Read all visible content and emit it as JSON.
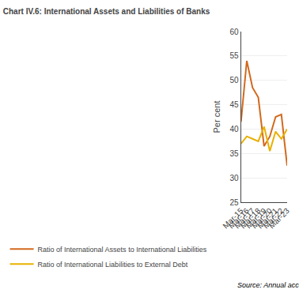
{
  "chart_data": {
    "type": "line",
    "title": "Chart IV.6: International Assets and Liabilities of Banks",
    "categories": [
      "Mar-15",
      "Mar-16",
      "Mar-17",
      "Mar-18",
      "Mar-19",
      "Mar-20",
      "Mar-21",
      "Mar-22",
      "Mar-23"
    ],
    "series": [
      {
        "name": "Ratio of International Assets to International Liabilities",
        "color": "#d2691e",
        "values": [
          41.5,
          54.0,
          48.5,
          46.5,
          36.5,
          38.5,
          42.5,
          43.0,
          32.5
        ]
      },
      {
        "name": "Ratio of International Liabilities to External Debt",
        "color": "#e8b000",
        "values": [
          37.0,
          38.5,
          38.0,
          37.5,
          40.5,
          35.5,
          39.5,
          38.0,
          40.0
        ]
      }
    ],
    "ylabel": "Per cent",
    "ylim": [
      25,
      60
    ],
    "yticks": [
      25,
      30,
      35,
      40,
      45,
      50,
      55,
      60
    ],
    "grid": true,
    "legend": "bottom",
    "source": "Source: Annual accounts of banks and DBIE."
  }
}
